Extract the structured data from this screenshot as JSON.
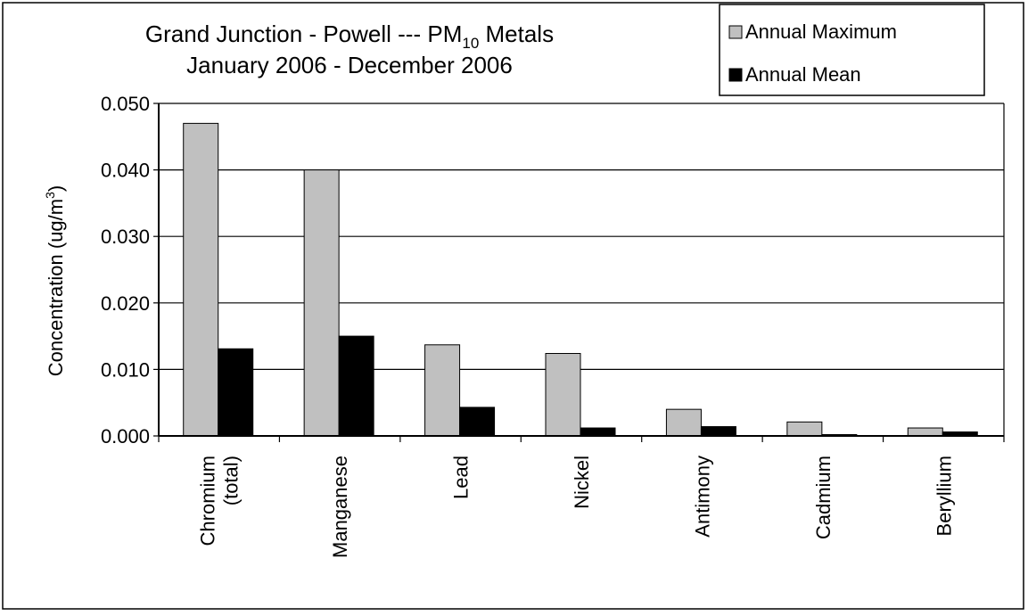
{
  "chart_data": {
    "type": "bar",
    "title_line1_main": "Grand Junction - Powell --- PM",
    "title_line1_sub": "10",
    "title_line1_end": " Metals",
    "title_line2": "January 2006 - December 2006",
    "ylabel_main": "Concentration (ug/m",
    "ylabel_sup": "3",
    "ylabel_end": ")",
    "ylim": [
      0,
      0.05
    ],
    "yticks": [
      "0.000",
      "0.010",
      "0.020",
      "0.030",
      "0.040",
      "0.050"
    ],
    "grid": true,
    "legend_position": "top-right",
    "categories": [
      [
        "Chromium",
        "(total)"
      ],
      [
        "Manganese"
      ],
      [
        "Lead"
      ],
      [
        "Nickel"
      ],
      [
        "Antimony"
      ],
      [
        "Cadmium"
      ],
      [
        "Beryllium"
      ]
    ],
    "series": [
      {
        "name": "Annual Maximum",
        "color": "#c0c0c0",
        "values": [
          0.047,
          0.04,
          0.0137,
          0.0124,
          0.004,
          0.0021,
          0.0012
        ]
      },
      {
        "name": "Annual Mean",
        "color": "#000000",
        "values": [
          0.0131,
          0.015,
          0.0043,
          0.0012,
          0.0014,
          0.0002,
          0.0006
        ]
      }
    ]
  }
}
